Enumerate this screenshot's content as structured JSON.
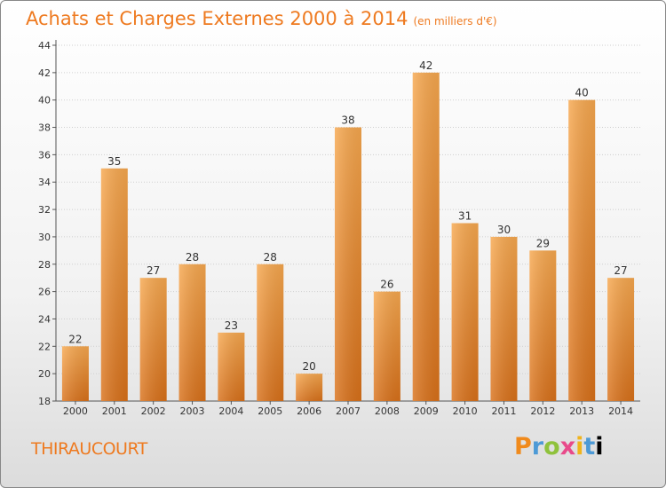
{
  "header": {
    "title": "Achats et Charges Externes 2000 à 2014",
    "unit": "(en milliers d'€)"
  },
  "commune": "THIRAUCOURT",
  "logo": {
    "letters": [
      "P",
      "r",
      "o",
      "x",
      "i",
      "t",
      "i"
    ]
  },
  "colors": {
    "accent": "#ee7a20",
    "bar_light": "#f7a54e",
    "bar_dark": "#d9731a"
  },
  "chart_data": {
    "type": "bar",
    "title": "Achats et Charges Externes 2000 à 2014",
    "subtitle": "(en milliers d'€)",
    "categories": [
      "2000",
      "2001",
      "2002",
      "2003",
      "2004",
      "2005",
      "2006",
      "2007",
      "2008",
      "2009",
      "2010",
      "2011",
      "2012",
      "2013",
      "2014"
    ],
    "values": [
      22,
      35,
      27,
      28,
      23,
      28,
      20,
      38,
      26,
      42,
      31,
      30,
      29,
      40,
      27
    ],
    "ylim": [
      18,
      44
    ],
    "yticks": [
      18,
      20,
      22,
      24,
      26,
      28,
      30,
      32,
      34,
      36,
      38,
      40,
      42,
      44
    ],
    "grid": true,
    "xlabel": "",
    "ylabel": ""
  }
}
